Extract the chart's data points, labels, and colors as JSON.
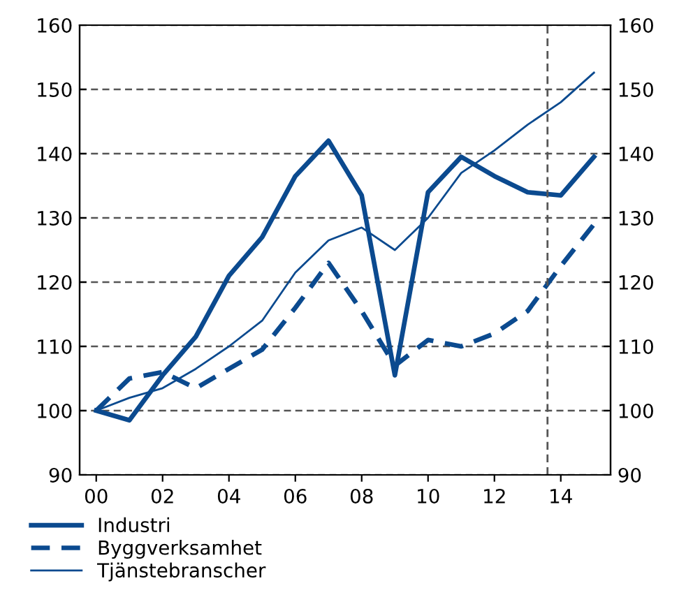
{
  "chart_data": {
    "type": "line",
    "x": [
      2000,
      2001,
      2002,
      2003,
      2004,
      2005,
      2006,
      2007,
      2008,
      2009,
      2010,
      2011,
      2012,
      2013,
      2014,
      2015
    ],
    "series": [
      {
        "name": "Industri",
        "color": "#0b4a8f",
        "line_style": "solid",
        "values": [
          100,
          98.5,
          105.5,
          111.5,
          121,
          127,
          136.5,
          142,
          133.5,
          105.5,
          134,
          139.5,
          136.5,
          134,
          133.5,
          139.5
        ]
      },
      {
        "name": "Byggverksamhet",
        "color": "#0b4a8f",
        "line_style": "dashed",
        "values": [
          100,
          105,
          106,
          103.5,
          106.5,
          109.5,
          116,
          123,
          115.5,
          107,
          111,
          110,
          112,
          115.5,
          122.5,
          129
        ]
      },
      {
        "name": "Tjänstebranscher",
        "color": "#0b4a8f",
        "line_style": "solid",
        "values": [
          100,
          102,
          103.5,
          106.5,
          110,
          114,
          121.5,
          126.5,
          128.5,
          125,
          130,
          137,
          140.5,
          144.5,
          148,
          152.6
        ]
      }
    ],
    "xlim": [
      1999.5,
      2015.5
    ],
    "xticks": [
      {
        "value": 2000,
        "label": "00"
      },
      {
        "value": 2002,
        "label": "02"
      },
      {
        "value": 2004,
        "label": "04"
      },
      {
        "value": 2006,
        "label": "06"
      },
      {
        "value": 2008,
        "label": "08"
      },
      {
        "value": 2010,
        "label": "10"
      },
      {
        "value": 2012,
        "label": "12"
      },
      {
        "value": 2014,
        "label": "14"
      }
    ],
    "ylim": [
      90,
      160
    ],
    "yticks": [
      90,
      100,
      110,
      120,
      130,
      140,
      150,
      160
    ],
    "y2lim": [
      90,
      160
    ],
    "y2ticks": [
      90,
      100,
      110,
      120,
      130,
      140,
      150,
      160
    ],
    "ref_lines": [
      {
        "axis": "x",
        "value": 2013.6,
        "color": "#555555",
        "line_style": "dashed"
      }
    ],
    "grid": "y",
    "legend": "bottom",
    "marker": "none"
  }
}
